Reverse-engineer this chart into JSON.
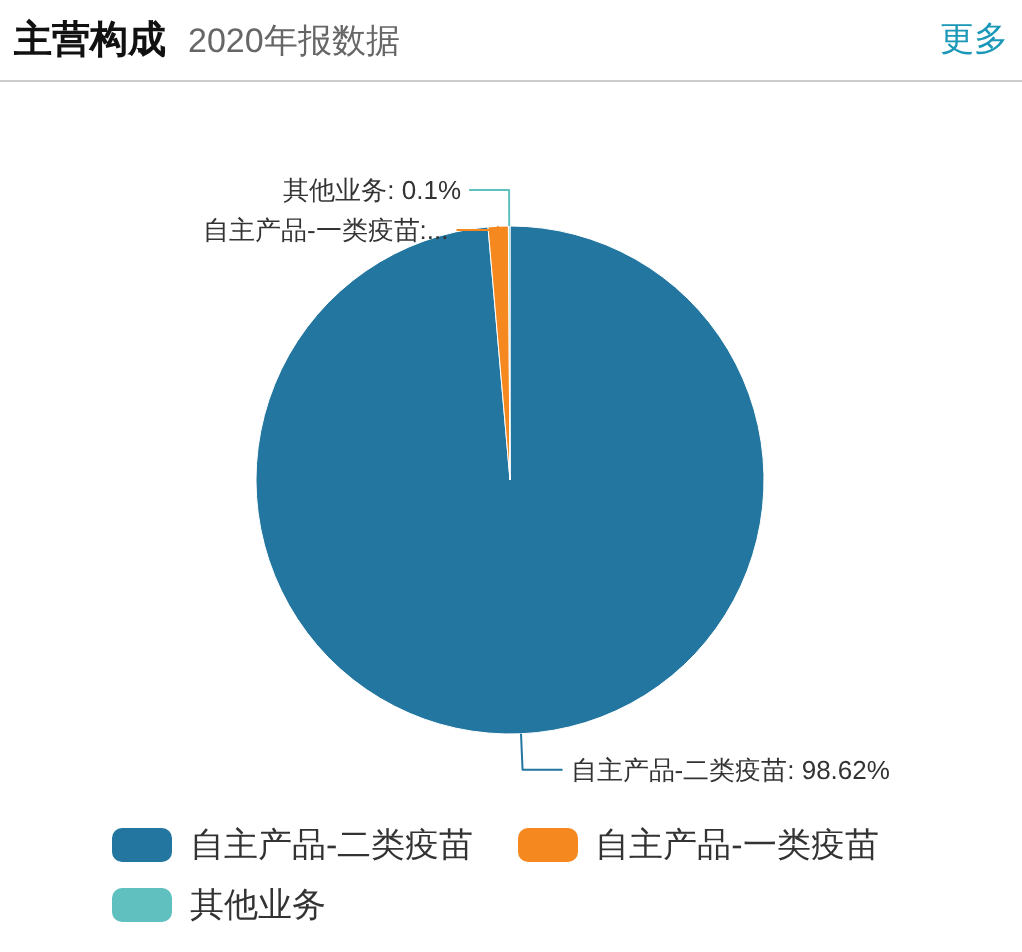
{
  "chart_data": {
    "type": "pie",
    "title": "主营构成",
    "subtitle": "2020年报数据",
    "annotations": [
      "更多"
    ],
    "categories": [
      "自主产品-二类疫苗",
      "自主产品-一类疫苗",
      "其他业务"
    ],
    "values": [
      98.62,
      1.28,
      0.1
    ],
    "colors": [
      "#22769f",
      "#f5881f",
      "#60bfbf"
    ],
    "value_labels": [
      "自主产品-二类疫苗: 98.62%",
      "自主产品-一类疫苗:...",
      "其他业务: 0.1%"
    ],
    "legend": "bottom"
  }
}
